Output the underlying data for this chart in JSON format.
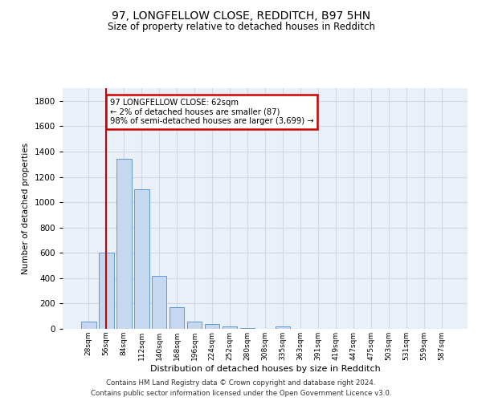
{
  "title_line1": "97, LONGFELLOW CLOSE, REDDITCH, B97 5HN",
  "title_line2": "Size of property relative to detached houses in Redditch",
  "xlabel": "Distribution of detached houses by size in Redditch",
  "ylabel": "Number of detached properties",
  "footer_line1": "Contains HM Land Registry data © Crown copyright and database right 2024.",
  "footer_line2": "Contains public sector information licensed under the Open Government Licence v3.0.",
  "bar_labels": [
    "28sqm",
    "56sqm",
    "84sqm",
    "112sqm",
    "140sqm",
    "168sqm",
    "196sqm",
    "224sqm",
    "252sqm",
    "280sqm",
    "308sqm",
    "335sqm",
    "363sqm",
    "391sqm",
    "419sqm",
    "447sqm",
    "475sqm",
    "503sqm",
    "531sqm",
    "559sqm",
    "587sqm"
  ],
  "bar_values": [
    60,
    600,
    1340,
    1100,
    420,
    170,
    60,
    35,
    20,
    5,
    0,
    20,
    0,
    0,
    0,
    0,
    0,
    0,
    0,
    0,
    0
  ],
  "bar_color": "#c5d8f0",
  "bar_edge_color": "#5b9bd5",
  "grid_color": "#d0d8e8",
  "background_color": "#eaf0f8",
  "annotation_text": "97 LONGFELLOW CLOSE: 62sqm\n← 2% of detached houses are smaller (87)\n98% of semi-detached houses are larger (3,699) →",
  "annotation_box_color": "#ffffff",
  "annotation_border_color": "#cc0000",
  "vline_x": 1.0,
  "vline_color": "#cc0000",
  "ylim": [
    0,
    1900
  ],
  "yticks": [
    0,
    200,
    400,
    600,
    800,
    1000,
    1200,
    1400,
    1600,
    1800
  ]
}
